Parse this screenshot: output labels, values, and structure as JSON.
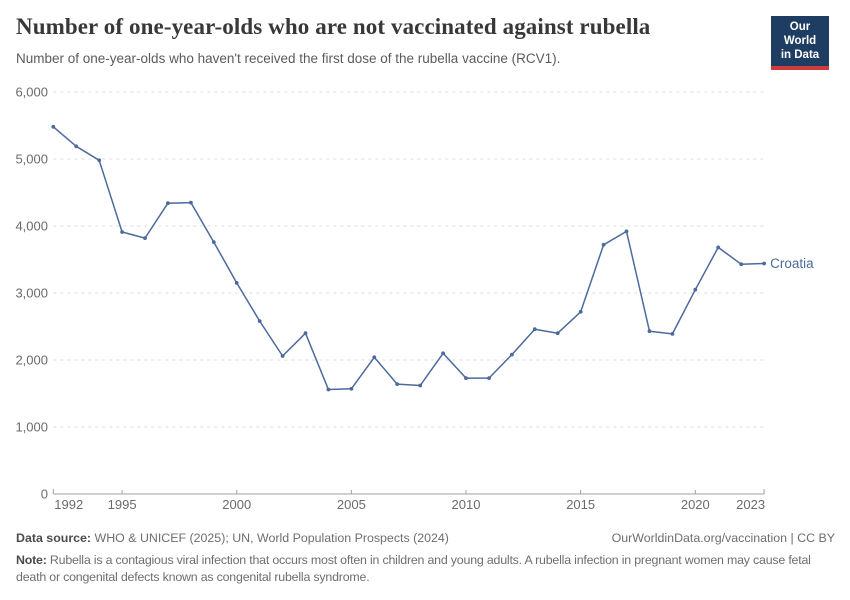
{
  "header": {
    "title": "Number of one-year-olds who are not vaccinated against rubella",
    "subtitle": "Number of one-year-olds who haven't received the first dose of the rubella vaccine (RCV1).",
    "logo": {
      "line1": "Our World",
      "line2": "in Data",
      "bg_color": "#1d3d63",
      "accent_color": "#cf3b3b"
    }
  },
  "chart_data": {
    "type": "line",
    "title": "Number of one-year-olds who are not vaccinated against rubella",
    "subtitle": "Number of one-year-olds who haven't received the first dose of the rubella vaccine (RCV1).",
    "x": [
      1992,
      1993,
      1994,
      1995,
      1996,
      1997,
      1998,
      1999,
      2000,
      2001,
      2002,
      2003,
      2004,
      2005,
      2006,
      2007,
      2008,
      2009,
      2010,
      2011,
      2012,
      2013,
      2014,
      2015,
      2016,
      2017,
      2018,
      2019,
      2020,
      2021,
      2022,
      2023
    ],
    "series": [
      {
        "name": "Croatia",
        "color": "#4C6A9C",
        "values": [
          5480,
          5190,
          4980,
          3910,
          3820,
          4340,
          4350,
          3760,
          3150,
          2580,
          2060,
          2400,
          1560,
          1570,
          2040,
          1640,
          1620,
          2100,
          1730,
          1730,
          2080,
          2460,
          2400,
          2720,
          3720,
          3920,
          2430,
          2390,
          3050,
          3680,
          3430,
          3440
        ]
      }
    ],
    "xlabel": "",
    "ylabel": "",
    "ylim": [
      0,
      6000
    ],
    "xlim": [
      1992,
      2023
    ],
    "yticks": [
      0,
      1000,
      2000,
      3000,
      4000,
      5000,
      6000
    ],
    "ytick_labels": [
      "0",
      "1,000",
      "2,000",
      "3,000",
      "4,000",
      "5,000",
      "6,000"
    ],
    "xticks": [
      1992,
      1995,
      2000,
      2005,
      2010,
      2015,
      2020,
      2023
    ],
    "grid": "horizontal-dashed",
    "legend": "end-of-line-label"
  },
  "colors": {
    "line": "#4C6A9C",
    "grid": "#dcdcdc",
    "axis": "#a0a0a0",
    "tick_label": "#6b6b6b"
  },
  "footer": {
    "data_source_label": "Data source:",
    "data_source_text": "WHO & UNICEF (2025); UN, World Population Prospects (2024)",
    "link": "OurWorldinData.org/vaccination | CC BY",
    "note_label": "Note:",
    "note_text": "Rubella is a contagious viral infection that occurs most often in children and young adults. A rubella infection in pregnant women may cause fetal death or congenital defects known as congenital rubella syndrome."
  }
}
